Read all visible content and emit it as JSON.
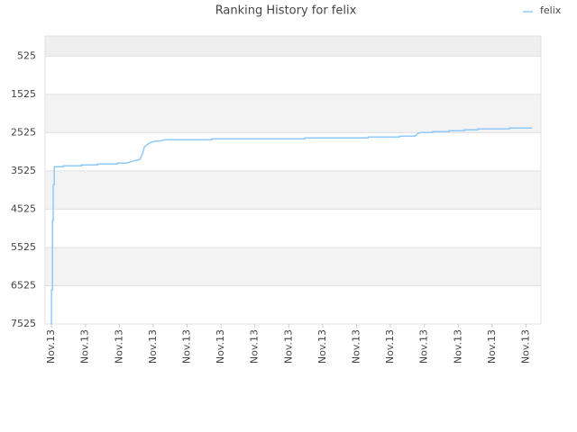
{
  "chart_data": {
    "type": "line",
    "title": "Ranking History for felix",
    "x": [
      0,
      0,
      0.03,
      0.03,
      0.05,
      0.05,
      0.08,
      0.08,
      0.35,
      0.35,
      0.88,
      0.88,
      1.36,
      1.36,
      1.94,
      1.94,
      2.21,
      2.47,
      2.61,
      2.69,
      2.74,
      2.87,
      3.01,
      3.27,
      3.35,
      4.73,
      4.73,
      7.47,
      7.47,
      9.34,
      9.34,
      10.27,
      10.27,
      10.74,
      10.8,
      10.93,
      11.25,
      11.25,
      11.73,
      11.73,
      12.18,
      12.18,
      12.58,
      12.58,
      13.51,
      13.51,
      14.18
    ],
    "series": [
      {
        "name": "felix",
        "color": "#90caf9",
        "values": [
          7525,
          6634,
          6634,
          4825,
          4825,
          3884,
          3884,
          3415,
          3415,
          3391,
          3391,
          3368,
          3368,
          3344,
          3344,
          3321,
          3321,
          3250,
          3227,
          3062,
          2898,
          2804,
          2757,
          2733,
          2710,
          2710,
          2686,
          2686,
          2663,
          2663,
          2639,
          2639,
          2616,
          2616,
          2545,
          2522,
          2522,
          2498,
          2498,
          2475,
          2475,
          2451,
          2451,
          2428,
          2428,
          2404,
          2404
        ]
      }
    ],
    "xlim": [
      -0.19,
      14.44
    ],
    "xticks": [
      {
        "value": 0,
        "label": "Nov.13"
      },
      {
        "value": 1,
        "label": "Nov.13"
      },
      {
        "value": 2,
        "label": "Nov.13"
      },
      {
        "value": 3,
        "label": "Nov.13"
      },
      {
        "value": 4,
        "label": "Nov.13"
      },
      {
        "value": 5,
        "label": "Nov.13"
      },
      {
        "value": 6,
        "label": "Nov.13"
      },
      {
        "value": 7,
        "label": "Nov.13"
      },
      {
        "value": 8,
        "label": "Nov.13"
      },
      {
        "value": 9,
        "label": "Nov.13"
      },
      {
        "value": 10,
        "label": "Nov.13"
      },
      {
        "value": 11,
        "label": "Nov.13"
      },
      {
        "value": 12,
        "label": "Nov.13"
      },
      {
        "value": 13,
        "label": "Nov.13"
      },
      {
        "value": 14,
        "label": "Nov.13"
      }
    ],
    "ylim": [
      7525,
      0
    ],
    "yticks": [
      525,
      1525,
      2525,
      3525,
      4525,
      5525,
      6525,
      7525
    ],
    "grid": true,
    "legend": "top-right"
  }
}
